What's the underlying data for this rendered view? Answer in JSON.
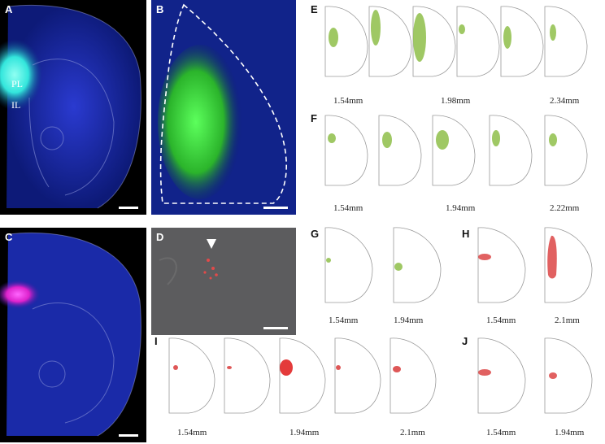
{
  "panels": {
    "A": {
      "label": "A",
      "region_upper": "PL",
      "region_lower": "IL"
    },
    "B": {
      "label": "B"
    },
    "C": {
      "label": "C"
    },
    "D": {
      "label": "D"
    },
    "E": {
      "label": "E",
      "levels": [
        "1.54mm",
        "1.98mm",
        "2.34mm"
      ]
    },
    "F": {
      "label": "F",
      "levels": [
        "1.54mm",
        "1.94mm",
        "2.22mm"
      ]
    },
    "G": {
      "label": "G",
      "levels": [
        "1.54mm",
        "1.94mm"
      ]
    },
    "H": {
      "label": "H",
      "levels": [
        "1.54mm",
        "2.1mm"
      ]
    },
    "I": {
      "label": "I",
      "levels": [
        "1.54mm",
        "1.94mm",
        "2.1mm"
      ]
    },
    "J": {
      "label": "J",
      "levels": [
        "1.54mm",
        "1.94mm"
      ]
    }
  },
  "colors": {
    "blue_stain": "#1a2fb0",
    "green_stain": "#3fe03f",
    "cyan_stain": "#33f0e0",
    "magenta_stain": "#ff22cc",
    "green_injection": "#8fbf4a",
    "red_injection": "#d93a3a"
  }
}
